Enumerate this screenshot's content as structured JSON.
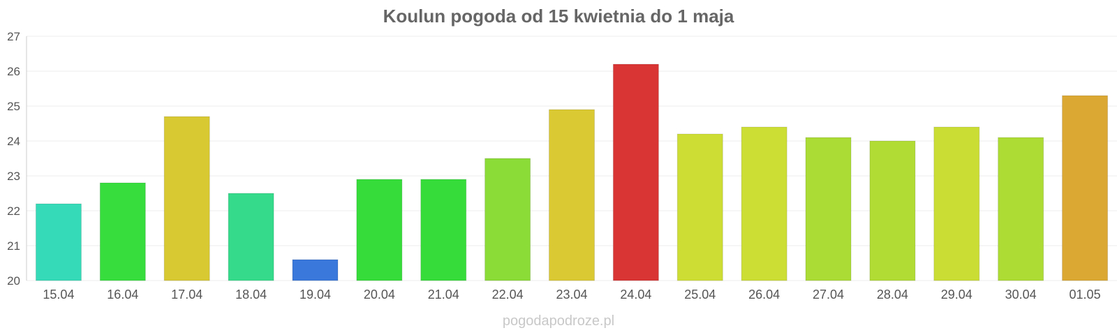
{
  "chart_data": {
    "type": "bar",
    "title": "Koulun pogoda od 15 kwietnia do 1 maja",
    "xlabel": "",
    "ylabel": "",
    "ylim": [
      20,
      27
    ],
    "yticks": [
      "20",
      "21",
      "22",
      "23",
      "24",
      "25",
      "26",
      "27"
    ],
    "grid": true,
    "categories": [
      "15.04",
      "16.04",
      "17.04",
      "18.04",
      "19.04",
      "20.04",
      "21.04",
      "22.04",
      "23.04",
      "24.04",
      "25.04",
      "26.04",
      "27.04",
      "28.04",
      "29.04",
      "30.04",
      "01.05"
    ],
    "values": [
      22.2,
      22.8,
      24.7,
      22.5,
      20.6,
      22.9,
      22.9,
      23.5,
      24.9,
      26.2,
      24.2,
      24.4,
      24.1,
      24.0,
      24.4,
      24.1,
      25.3
    ],
    "colors": [
      "#35dbb8",
      "#36dd3d",
      "#d8c932",
      "#35db8b",
      "#3a78db",
      "#36dd3a",
      "#36dd3a",
      "#8bdc36",
      "#dac932",
      "#da3535",
      "#cedd34",
      "#ccdd34",
      "#aadc35",
      "#b0dc34",
      "#cadd34",
      "#addc35",
      "#dba834"
    ]
  },
  "credit": "pogodapodroze.pl"
}
